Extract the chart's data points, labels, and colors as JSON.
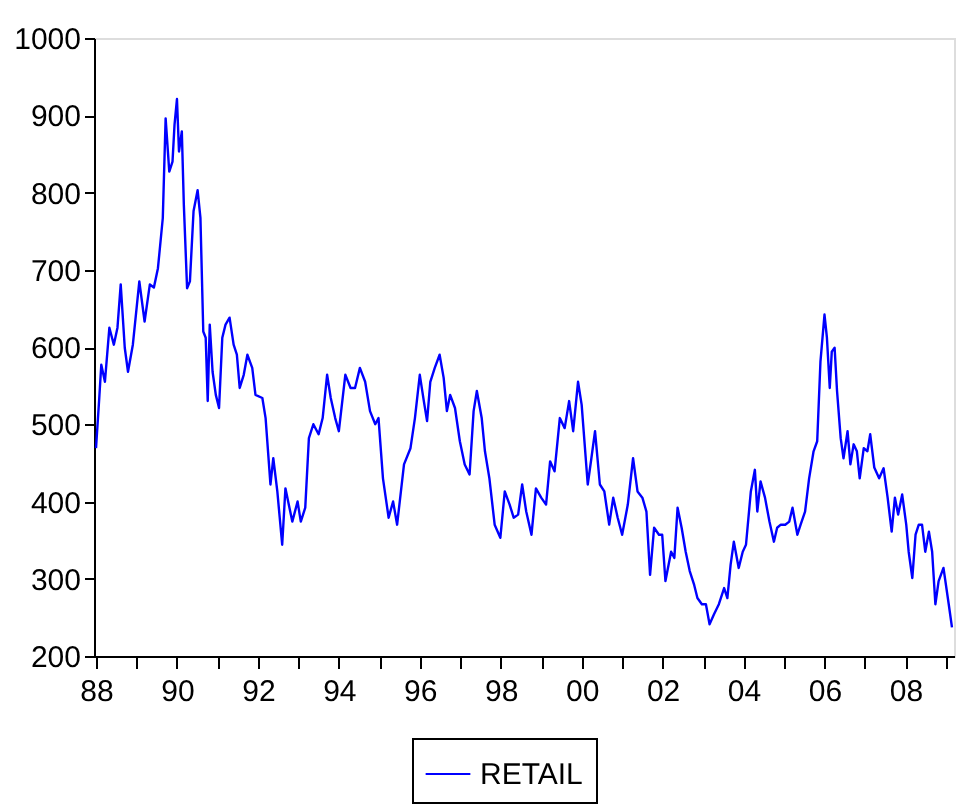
{
  "chart_data": {
    "type": "line",
    "xlim": [
      1987.95,
      2009.2
    ],
    "ylim": [
      200,
      1000
    ],
    "yticks": [
      200,
      300,
      400,
      500,
      600,
      700,
      800,
      900,
      1000
    ],
    "xticks": [
      {
        "value": 1988,
        "label": "88"
      },
      {
        "value": 1989,
        "label": null
      },
      {
        "value": 1990,
        "label": "90"
      },
      {
        "value": 1991,
        "label": null
      },
      {
        "value": 1992,
        "label": "92"
      },
      {
        "value": 1993,
        "label": null
      },
      {
        "value": 1994,
        "label": "94"
      },
      {
        "value": 1995,
        "label": null
      },
      {
        "value": 1996,
        "label": "96"
      },
      {
        "value": 1997,
        "label": null
      },
      {
        "value": 1998,
        "label": "98"
      },
      {
        "value": 1999,
        "label": null
      },
      {
        "value": 2000,
        "label": "00"
      },
      {
        "value": 2001,
        "label": null
      },
      {
        "value": 2002,
        "label": "02"
      },
      {
        "value": 2003,
        "label": null
      },
      {
        "value": 2004,
        "label": "04"
      },
      {
        "value": 2005,
        "label": null
      },
      {
        "value": 2006,
        "label": "06"
      },
      {
        "value": 2007,
        "label": null
      },
      {
        "value": 2008,
        "label": "08"
      },
      {
        "value": 2009,
        "label": null
      }
    ],
    "grid": false,
    "legend": "bottom",
    "marker": "none",
    "line_style": "solid",
    "series": [
      {
        "name": "RETAIL",
        "color": "#0000ff",
        "x": [
          1988.0,
          1988.08,
          1988.13,
          1988.22,
          1988.33,
          1988.44,
          1988.53,
          1988.61,
          1988.71,
          1988.79,
          1988.91,
          1989.07,
          1989.2,
          1989.33,
          1989.43,
          1989.53,
          1989.65,
          1989.72,
          1989.81,
          1989.89,
          1989.94,
          1990.0,
          1990.05,
          1990.12,
          1990.17,
          1990.25,
          1990.32,
          1990.41,
          1990.51,
          1990.58,
          1990.65,
          1990.71,
          1990.76,
          1990.81,
          1990.88,
          1990.96,
          1991.04,
          1991.12,
          1991.2,
          1991.3,
          1991.4,
          1991.48,
          1991.55,
          1991.65,
          1991.74,
          1991.86,
          1991.94,
          1992.11,
          1992.19,
          1992.31,
          1992.38,
          1992.48,
          1992.6,
          1992.68,
          1992.85,
          1992.98,
          1993.06,
          1993.17,
          1993.26,
          1993.37,
          1993.5,
          1993.6,
          1993.71,
          1993.8,
          1993.91,
          1994.0,
          1994.16,
          1994.29,
          1994.4,
          1994.52,
          1994.65,
          1994.77,
          1994.9,
          1994.98,
          1995.09,
          1995.23,
          1995.34,
          1995.44,
          1995.61,
          1995.77,
          1995.88,
          1996.0,
          1996.1,
          1996.18,
          1996.26,
          1996.37,
          1996.49,
          1996.59,
          1996.67,
          1996.75,
          1996.87,
          1996.99,
          1997.11,
          1997.23,
          1997.33,
          1997.41,
          1997.53,
          1997.61,
          1997.72,
          1997.85,
          1997.99,
          1998.1,
          1998.22,
          1998.32,
          1998.43,
          1998.53,
          1998.63,
          1998.76,
          1998.87,
          1999.0,
          1999.12,
          1999.22,
          1999.33,
          1999.46,
          1999.58,
          1999.69,
          1999.79,
          1999.91,
          2000.0,
          2000.15,
          2000.24,
          2000.33,
          2000.45,
          2000.56,
          2000.68,
          2000.78,
          2000.89,
          2001.0,
          2001.14,
          2001.27,
          2001.38,
          2001.5,
          2001.6,
          2001.69,
          2001.79,
          2001.91,
          2001.99,
          2002.07,
          2002.21,
          2002.29,
          2002.37,
          2002.47,
          2002.57,
          2002.67,
          2002.78,
          2002.86,
          2002.97,
          2003.07,
          2003.16,
          2003.27,
          2003.39,
          2003.52,
          2003.6,
          2003.68,
          2003.76,
          2003.88,
          2003.98,
          2004.06,
          2004.18,
          2004.28,
          2004.34,
          2004.42,
          2004.53,
          2004.64,
          2004.75,
          2004.83,
          2004.92,
          2005.03,
          2005.13,
          2005.21,
          2005.33,
          2005.41,
          2005.52,
          2005.62,
          2005.73,
          2005.82,
          2005.9,
          2006.0,
          2006.06,
          2006.13,
          2006.18,
          2006.25,
          2006.31,
          2006.4,
          2006.47,
          2006.57,
          2006.64,
          2006.72,
          2006.8,
          2006.87,
          2006.97,
          2007.06,
          2007.13,
          2007.23,
          2007.35,
          2007.46,
          2007.56,
          2007.66,
          2007.74,
          2007.82,
          2007.92,
          2008.02,
          2008.08,
          2008.17,
          2008.25,
          2008.33,
          2008.41,
          2008.49,
          2008.58,
          2008.66,
          2008.74,
          2008.82,
          2008.94,
          2009.07,
          2009.15
        ],
        "values": [
          469,
          534,
          577,
          555,
          625,
          603,
          625,
          681,
          599,
          568,
          603,
          685,
          633,
          681,
          677,
          702,
          767,
          896,
          827,
          840,
          888,
          921,
          853,
          879,
          784,
          676,
          685,
          776,
          803,
          767,
          620,
          612,
          530,
          629,
          568,
          538,
          521,
          612,
          629,
          638,
          603,
          590,
          547,
          564,
          590,
          573,
          538,
          534,
          508,
          422,
          456,
          413,
          344,
          417,
          374,
          400,
          374,
          392,
          482,
          500,
          487,
          508,
          564,
          534,
          508,
          491,
          564,
          547,
          547,
          573,
          555,
          517,
          500,
          508,
          430,
          379,
          400,
          370,
          448,
          469,
          508,
          564,
          530,
          504,
          555,
          573,
          590,
          560,
          517,
          538,
          521,
          478,
          448,
          435,
          517,
          543,
          508,
          465,
          430,
          370,
          353,
          413,
          396,
          379,
          383,
          422,
          387,
          357,
          417,
          405,
          396,
          452,
          439,
          508,
          495,
          530,
          491,
          555,
          525,
          422,
          456,
          491,
          422,
          413,
          370,
          405,
          379,
          357,
          396,
          456,
          413,
          405,
          387,
          305,
          366,
          357,
          357,
          297,
          335,
          327,
          392,
          366,
          335,
          310,
          292,
          275,
          267,
          267,
          241,
          254,
          267,
          288,
          275,
          318,
          348,
          314,
          335,
          344,
          413,
          441,
          387,
          426,
          405,
          374,
          348,
          366,
          370,
          370,
          374,
          392,
          357,
          370,
          387,
          430,
          465,
          478,
          581,
          642,
          612,
          547,
          594,
          599,
          543,
          482,
          456,
          491,
          448,
          474,
          465,
          430,
          469,
          465,
          487,
          444,
          430,
          443,
          405,
          361,
          405,
          383,
          409,
          370,
          335,
          301,
          357,
          370,
          370,
          335,
          361,
          335,
          267,
          297,
          314,
          267,
          237
        ]
      }
    ]
  }
}
